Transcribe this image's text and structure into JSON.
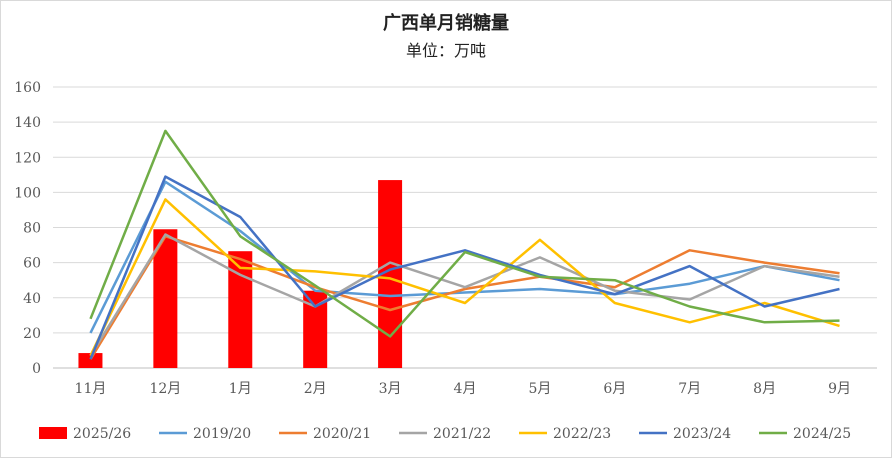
{
  "chart_data": {
    "type": "bar+line",
    "title": "广西单月销糖量",
    "subtitle": "单位：万吨",
    "categories": [
      "11月",
      "12月",
      "1月",
      "2月",
      "3月",
      "4月",
      "5月",
      "6月",
      "7月",
      "8月",
      "9月"
    ],
    "ylim": [
      0,
      160
    ],
    "yticks": [
      0,
      20,
      40,
      60,
      80,
      100,
      120,
      140,
      160
    ],
    "grid": true,
    "legend_position": "bottom",
    "bar_series": {
      "name": "2025/26",
      "color": "#ff0000",
      "values": [
        8.5,
        79,
        66.5,
        44,
        107
      ]
    },
    "line_series": [
      {
        "name": "2019/20",
        "color": "#5b9bd5",
        "values": [
          20,
          106,
          78,
          44,
          41,
          43,
          45,
          42,
          48,
          58,
          50
        ]
      },
      {
        "name": "2020/21",
        "color": "#ed7d31",
        "values": [
          5,
          75,
          62,
          46,
          33,
          45,
          52,
          46,
          67,
          60,
          54
        ]
      },
      {
        "name": "2021/22",
        "color": "#a5a5a5",
        "values": [
          7,
          76,
          53,
          35,
          60,
          46,
          63,
          44,
          39,
          58,
          52
        ]
      },
      {
        "name": "2022/23",
        "color": "#ffc000",
        "values": [
          7,
          96,
          57,
          55,
          51,
          37,
          73,
          37,
          26,
          37,
          24
        ]
      },
      {
        "name": "2023/24",
        "color": "#4472c4",
        "values": [
          5,
          109,
          86,
          35,
          56,
          67,
          53,
          42,
          58,
          35,
          45
        ]
      },
      {
        "name": "2024/25",
        "color": "#70ad47",
        "values": [
          28,
          135,
          75,
          47,
          18,
          66,
          52,
          50,
          35,
          26,
          27
        ]
      }
    ]
  }
}
